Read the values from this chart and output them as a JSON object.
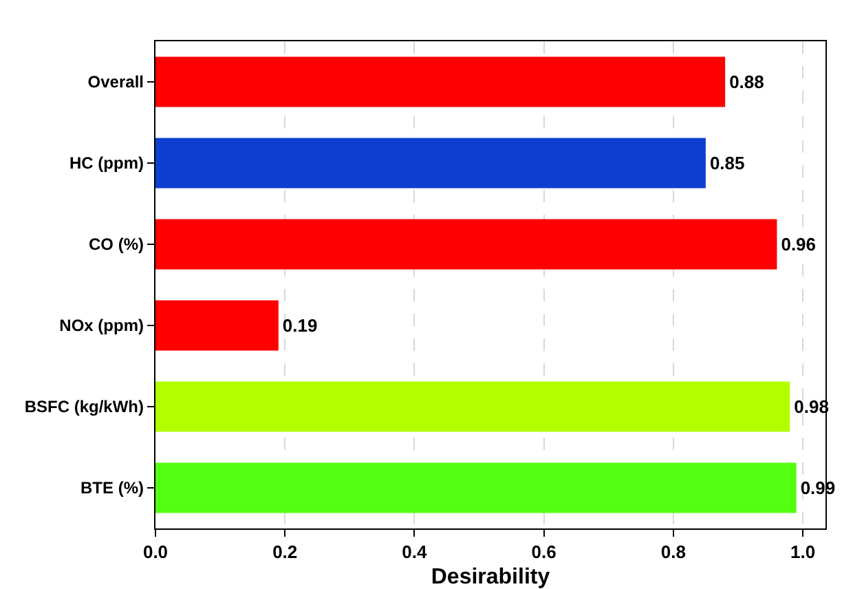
{
  "chart_data": {
    "type": "bar",
    "orientation": "horizontal",
    "xlabel": "Desirability",
    "categories": [
      "Overall",
      "HC (ppm)",
      "CO (%)",
      "NOx (ppm)",
      "BSFC (kg/kWh)",
      "BTE (%)"
    ],
    "values": [
      0.88,
      0.85,
      0.96,
      0.19,
      0.98,
      0.99
    ],
    "colors": [
      "#ff0000",
      "#0f3fcf",
      "#ff0000",
      "#ff0000",
      "#b2ff00",
      "#55ff11"
    ],
    "xlim": [
      0,
      1.035
    ],
    "xticks": [
      {
        "value": 0,
        "label": "0.0"
      },
      0.2,
      0.4,
      0.6,
      0.8,
      {
        "value": 1,
        "label": "1.0"
      }
    ],
    "grid": "x",
    "data_labels": true
  }
}
